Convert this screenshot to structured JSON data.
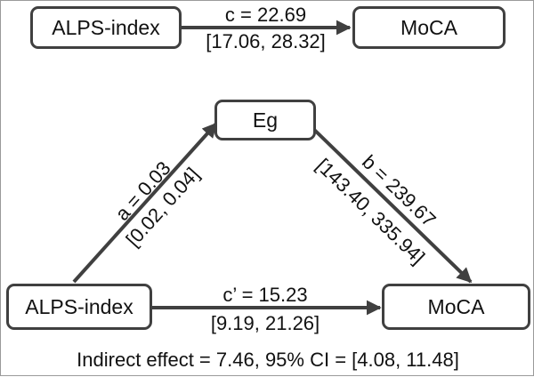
{
  "top_model": {
    "left_node": "ALPS-index",
    "right_node": "MoCA",
    "path_c": "c = 22.69",
    "path_c_ci": "[17.06, 28.32]"
  },
  "mediation_model": {
    "predictor": "ALPS-index",
    "mediator": "Eg",
    "outcome": "MoCA",
    "path_a": "a = 0.03",
    "path_a_ci": "[0.02, 0.04]",
    "path_b": "b = 239.67",
    "path_b_ci": "[143.40, 335.94]",
    "path_c_prime": "c’ = 15.23",
    "path_c_prime_ci": "[9.19, 21.26]"
  },
  "indirect_effect": "Indirect effect = 7.46, 95% CI = [4.08, 11.48]",
  "colors": {
    "stroke": "#404040",
    "text": "#111111"
  }
}
